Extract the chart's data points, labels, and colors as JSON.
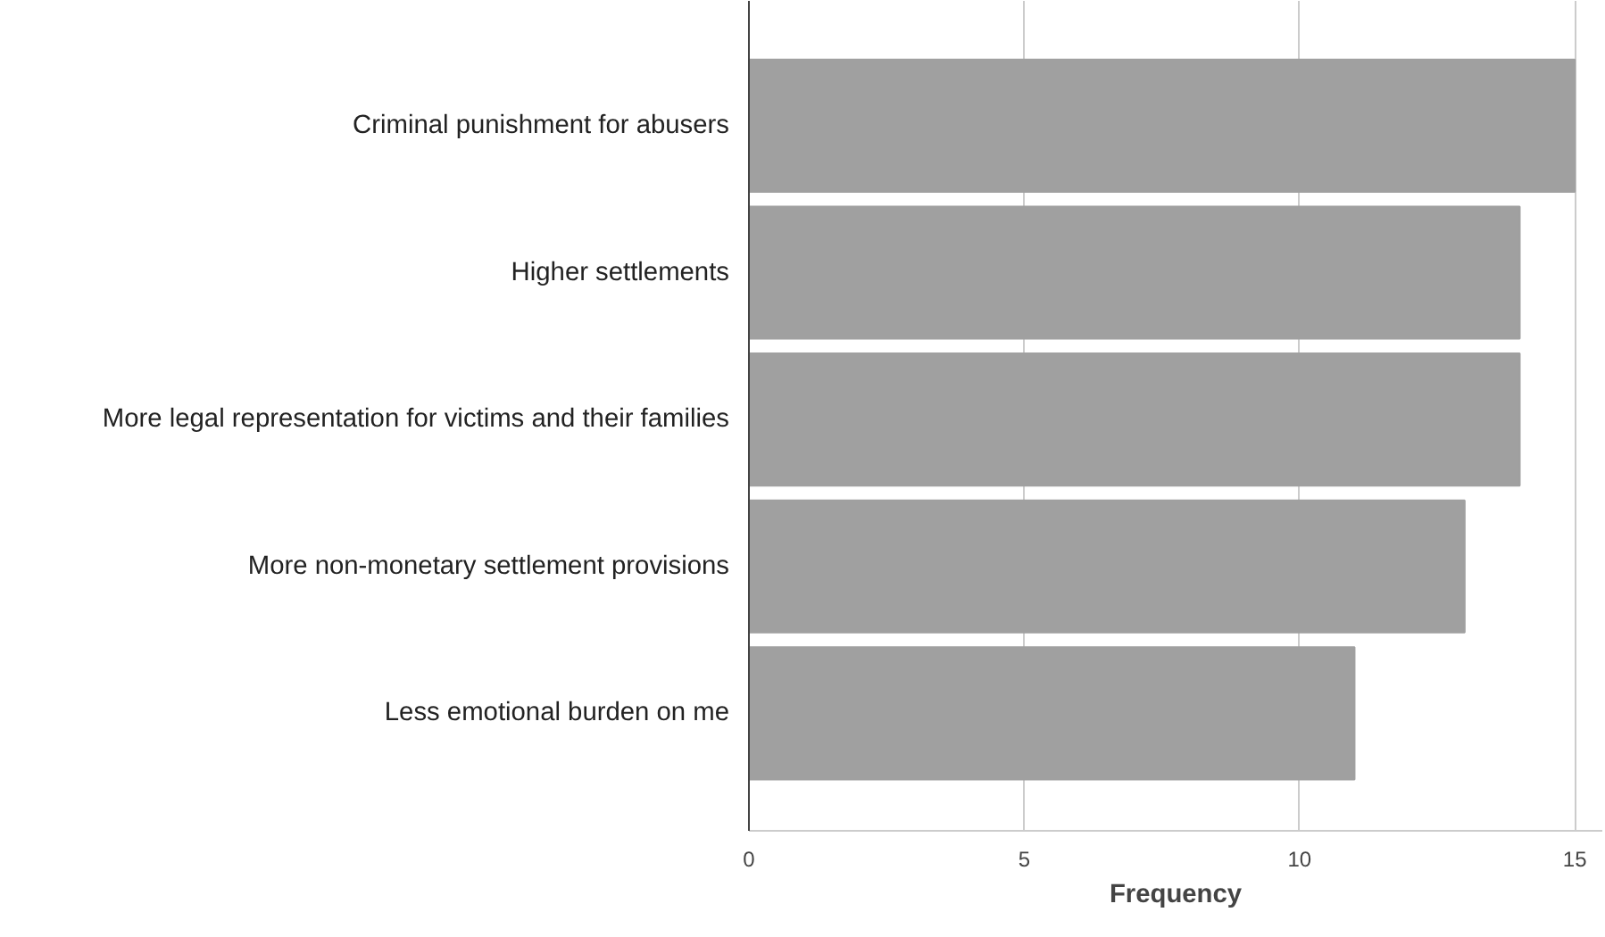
{
  "chart_data": {
    "type": "bar",
    "orientation": "horizontal",
    "xlabel": "Frequency",
    "categories": [
      "Criminal punishment for abusers",
      "Higher settlements",
      "More legal representation for victims and their families",
      "More non-monetary settlement provisions",
      "Less emotional burden on me"
    ],
    "values": [
      15,
      14,
      14,
      13,
      11
    ],
    "color": "#a0a0a0",
    "xlim": [
      0,
      15.5
    ],
    "xticks": [
      0,
      5,
      10,
      15
    ],
    "grid": "x"
  }
}
